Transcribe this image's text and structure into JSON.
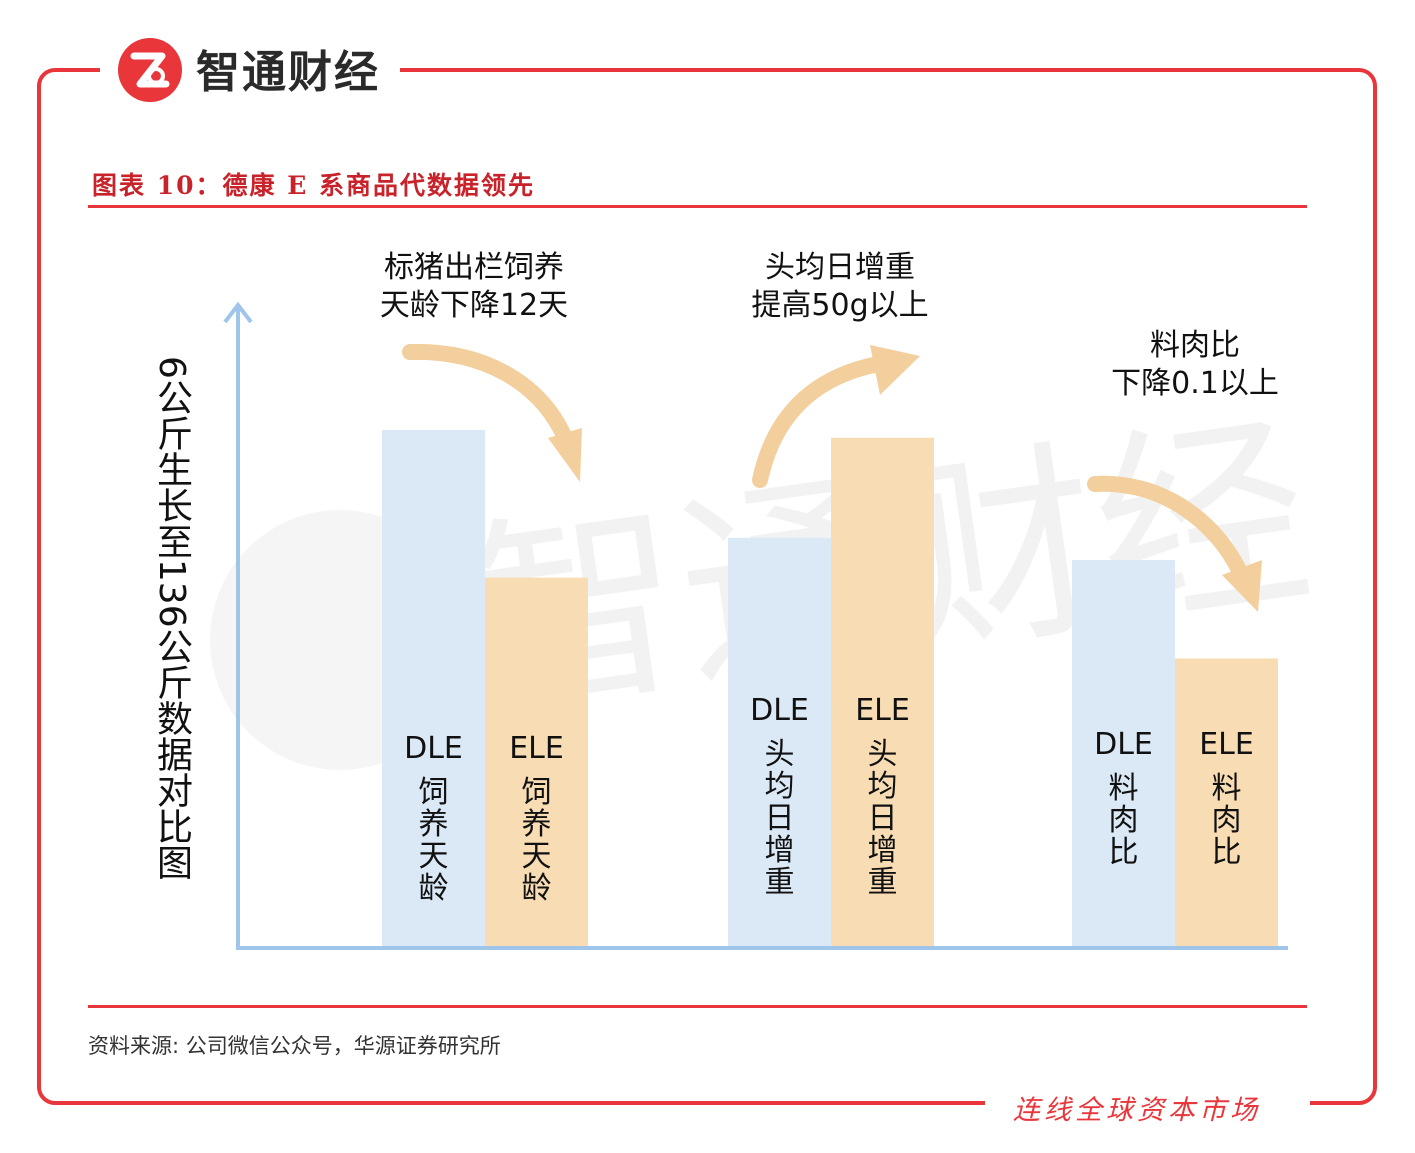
{
  "brand": {
    "name": "智通财经",
    "slogan": "连线全球资本市场",
    "logo": "zhitong-logo-icon"
  },
  "figure": {
    "title": "图表 10：德康 E 系商品代数据领先",
    "source": "资料来源: 公司微信公众号，华源证券研究所"
  },
  "colors": {
    "frame": "#e8363a",
    "dle_bar": "#dbe9f7",
    "ele_bar": "#f8dcb4",
    "axis": "#9fc5ea",
    "arrow": "#f2cf9c"
  },
  "chart_data": {
    "type": "bar",
    "ylabel": "6公斤生长至136公斤数据对比图",
    "groups": [
      {
        "annotation": [
          "标猪出栏饲养",
          "天龄下降12天"
        ],
        "arrow": "down",
        "bars": [
          {
            "series": "DLE",
            "label": [
              "DLE",
              "饲",
              "养",
              "天",
              "龄"
            ],
            "value": 100
          },
          {
            "series": "ELE",
            "label": [
              "ELE",
              "饲",
              "养",
              "天",
              "龄"
            ],
            "value": 71.5
          }
        ]
      },
      {
        "annotation": [
          "头均日增重",
          "提高50g以上"
        ],
        "arrow": "up",
        "bars": [
          {
            "series": "DLE",
            "label": [
              "DLE",
              "头",
              "均",
              "日",
              "增",
              "重"
            ],
            "value": 79.2
          },
          {
            "series": "ELE",
            "label": [
              "ELE",
              "头",
              "均",
              "日",
              "增",
              "重"
            ],
            "value": 98.5
          }
        ]
      },
      {
        "annotation": [
          "料肉比",
          "下降0.1以上"
        ],
        "arrow": "down",
        "bars": [
          {
            "series": "DLE",
            "label": [
              "DLE",
              "料",
              "肉",
              "比"
            ],
            "value": 74.9
          },
          {
            "series": "ELE",
            "label": [
              "ELE",
              "料",
              "肉",
              "比"
            ],
            "value": 55.9
          }
        ]
      }
    ],
    "ylim": [
      0,
      100
    ],
    "grid": false,
    "legend": "none"
  }
}
